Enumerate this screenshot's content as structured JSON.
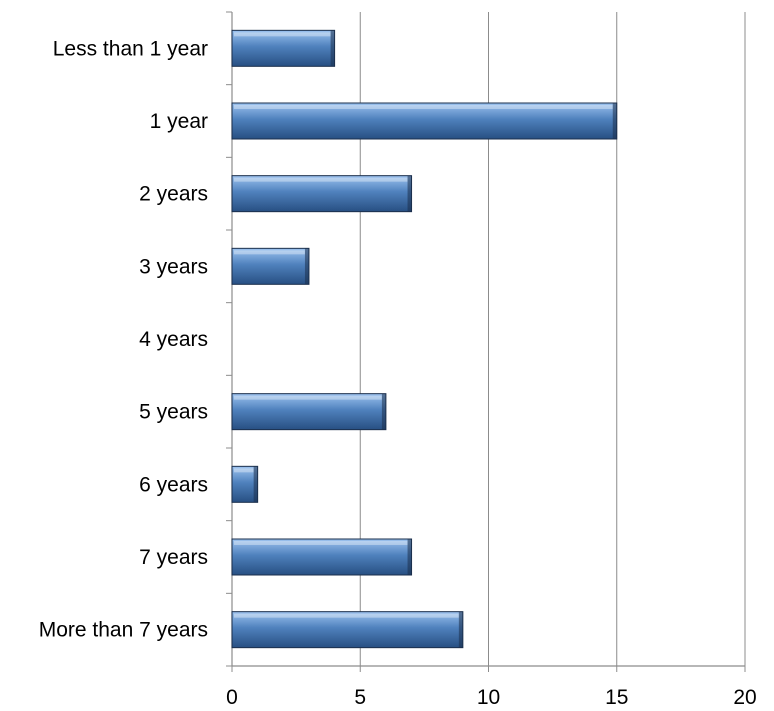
{
  "colors": {
    "bar_light": "#9dc3ef",
    "bar_mid": "#4f81bd",
    "bar_dark": "#274f82",
    "bar_edge": "#1b2f4c",
    "gridline": "#8c8c8c",
    "axis": "#8c8c8c",
    "text": "#000000"
  },
  "chart_data": {
    "type": "bar",
    "orientation": "horizontal",
    "categories": [
      "Less than 1 year",
      "1 year",
      "2 years",
      "3 years",
      "4 years",
      "5 years",
      "6 years",
      "7 years",
      "More than 7 years"
    ],
    "values": [
      4,
      15,
      7,
      3,
      0,
      6,
      1,
      7,
      9
    ],
    "x_ticks": [
      "0",
      "5",
      "10",
      "15",
      "20"
    ],
    "xlim": [
      0,
      20
    ],
    "grid": true,
    "legend": "none",
    "title": "",
    "xlabel": "",
    "ylabel": ""
  }
}
